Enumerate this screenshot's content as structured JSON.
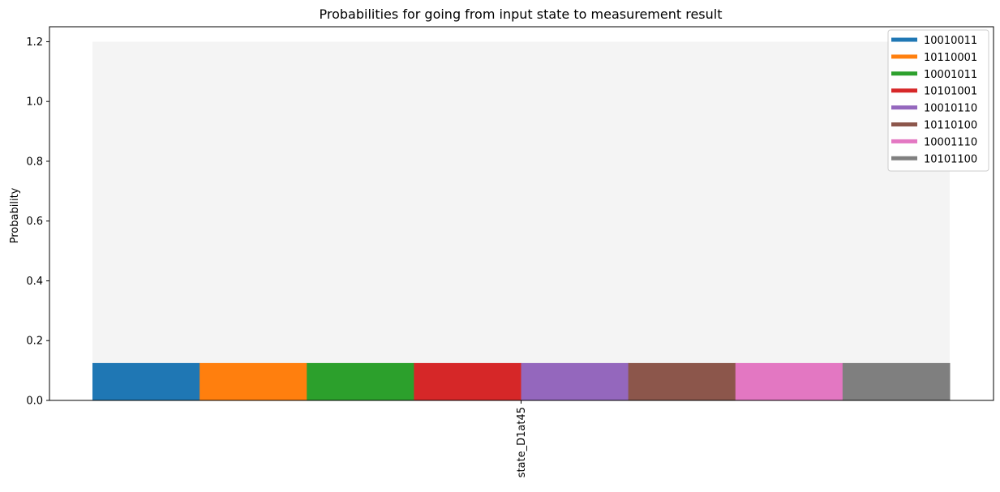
{
  "chart_data": {
    "type": "bar",
    "title": "Probabilities for going from input state to measurement result",
    "xlabel": "",
    "ylabel": "Probability",
    "ylim": [
      0,
      1.25
    ],
    "yticks": [
      "0.0",
      "0.2",
      "0.4",
      "0.6",
      "0.8",
      "1.0",
      "1.2"
    ],
    "categories": [
      "state_D1at45"
    ],
    "background_bar": {
      "value": 1.2,
      "color": "#f4f4f4"
    },
    "series": [
      {
        "name": "10010011",
        "values": [
          0.125
        ],
        "color": "#1f77b4"
      },
      {
        "name": "10110001",
        "values": [
          0.125
        ],
        "color": "#ff7f0e"
      },
      {
        "name": "10001011",
        "values": [
          0.125
        ],
        "color": "#2ca02c"
      },
      {
        "name": "10101001",
        "values": [
          0.125
        ],
        "color": "#d62728"
      },
      {
        "name": "10010110",
        "values": [
          0.125
        ],
        "color": "#9467bd"
      },
      {
        "name": "10110100",
        "values": [
          0.125
        ],
        "color": "#8c564b"
      },
      {
        "name": "10001110",
        "values": [
          0.125
        ],
        "color": "#e377c2"
      },
      {
        "name": "10101100",
        "values": [
          0.125
        ],
        "color": "#7f7f7f"
      }
    ],
    "legend_position": "top-right",
    "grid": false
  }
}
